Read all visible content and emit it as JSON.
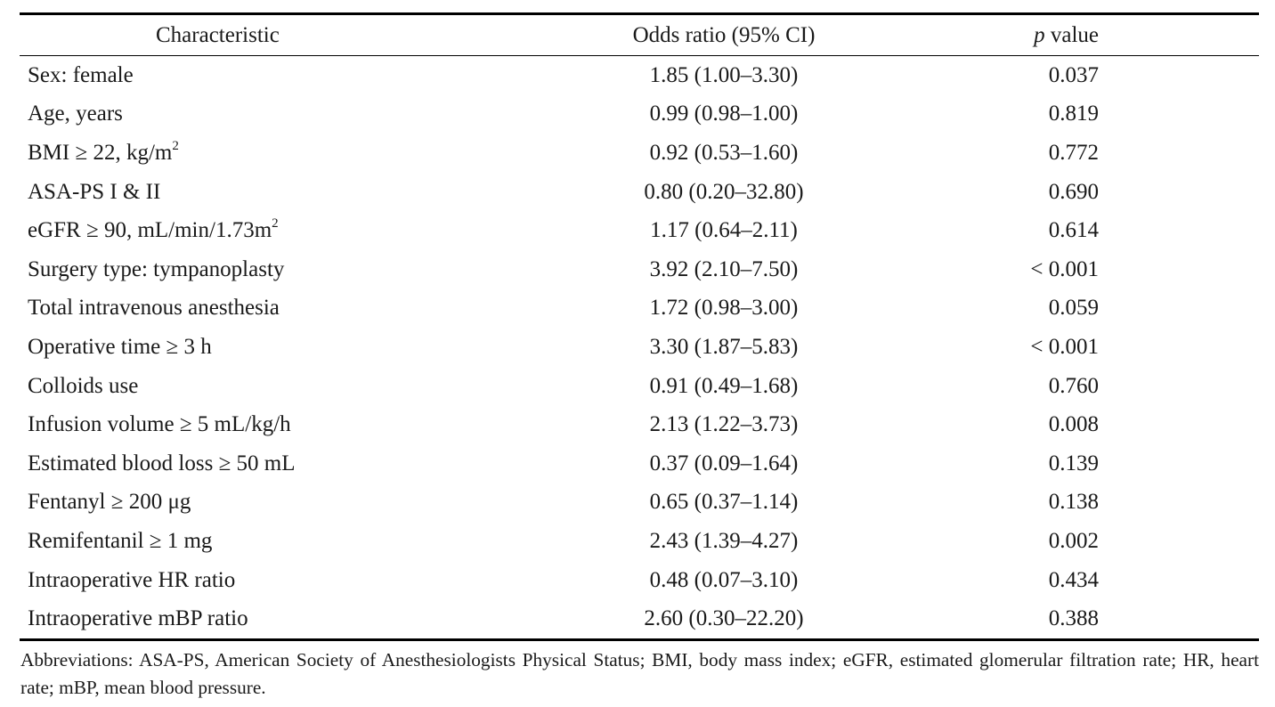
{
  "table": {
    "headers": {
      "characteristic": "Characteristic",
      "odds_ratio": "Odds ratio (95% CI)",
      "p_italic": "p",
      "p_rest": " value"
    },
    "rows": [
      {
        "characteristic": "Sex: female",
        "odds_ratio": "1.85 (1.00–3.30)",
        "p_value": "0.037"
      },
      {
        "characteristic": "Age, years",
        "odds_ratio": "0.99 (0.98–1.00)",
        "p_value": "0.819"
      },
      {
        "characteristic": "BMI ≥ 22, kg/m",
        "sup": "2",
        "odds_ratio": "0.92 (0.53–1.60)",
        "p_value": "0.772"
      },
      {
        "characteristic": "ASA-PS I & II",
        "odds_ratio": "0.80 (0.20–32.80)",
        "p_value": "0.690"
      },
      {
        "characteristic": "eGFR ≥ 90, mL/min/1.73m",
        "sup": "2",
        "odds_ratio": "1.17 (0.64–2.11)",
        "p_value": "0.614"
      },
      {
        "characteristic": "Surgery type: tympanoplasty",
        "odds_ratio": "3.92 (2.10–7.50)",
        "p_value": "< 0.001"
      },
      {
        "characteristic": "Total intravenous anesthesia",
        "odds_ratio": "1.72 (0.98–3.00)",
        "p_value": "0.059"
      },
      {
        "characteristic": "Operative time ≥ 3 h",
        "odds_ratio": "3.30 (1.87–5.83)",
        "p_value": "< 0.001"
      },
      {
        "characteristic": "Colloids use",
        "odds_ratio": "0.91 (0.49–1.68)",
        "p_value": "0.760"
      },
      {
        "characteristic": "Infusion volume ≥ 5 mL/kg/h",
        "odds_ratio": "2.13 (1.22–3.73)",
        "p_value": "0.008"
      },
      {
        "characteristic": "Estimated blood loss ≥ 50 mL",
        "odds_ratio": "0.37 (0.09–1.64)",
        "p_value": "0.139"
      },
      {
        "characteristic": "Fentanyl ≥ 200 μg",
        "odds_ratio": "0.65 (0.37–1.14)",
        "p_value": "0.138"
      },
      {
        "characteristic": "Remifentanil ≥ 1 mg",
        "odds_ratio": "2.43 (1.39–4.27)",
        "p_value": "0.002"
      },
      {
        "characteristic": "Intraoperative HR ratio",
        "odds_ratio": "0.48 (0.07–3.10)",
        "p_value": "0.434"
      },
      {
        "characteristic": "Intraoperative mBP ratio",
        "odds_ratio": "2.60 (0.30–22.20)",
        "p_value": "0.388"
      }
    ],
    "footnote": "Abbreviations: ASA-PS, American Society of Anesthesiologists Physical Status; BMI, body mass index; eGFR, estimated glomerular filtration rate; HR, heart rate; mBP, mean blood pressure."
  }
}
